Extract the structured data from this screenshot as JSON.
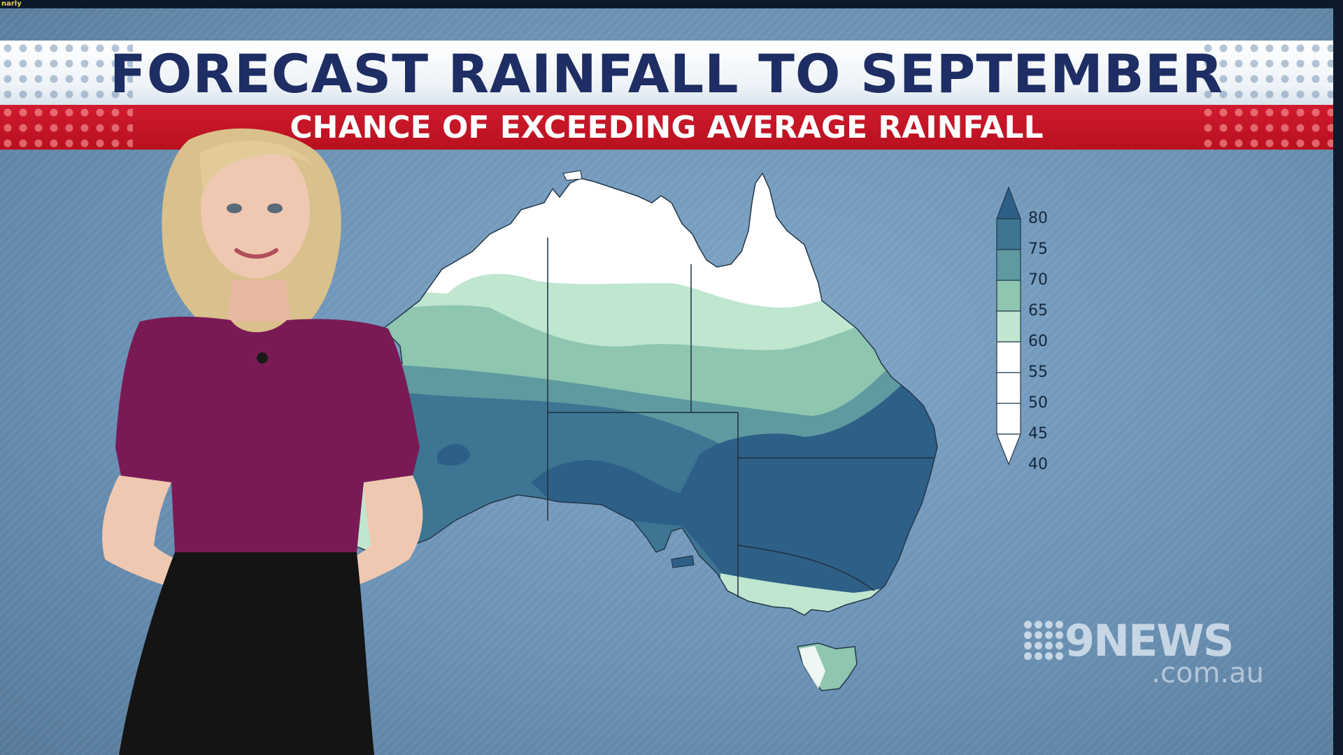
{
  "corner_tag": "narly",
  "title": "FORECAST RAINFALL TO SEPTEMBER",
  "subtitle": "CHANCE OF EXCEEDING AVERAGE RAINFALL",
  "legend": {
    "labels": [
      "80",
      "75",
      "70",
      "65",
      "60",
      "55",
      "50",
      "45",
      "40"
    ],
    "colors": [
      "#2e5f86",
      "#3d7593",
      "#5f9aa0",
      "#8ec6b0",
      "#bfe6cf",
      "#ffffff",
      "#ffffff",
      "#ffffff",
      "#ffffff"
    ]
  },
  "logo": {
    "brand": "9NEWS",
    "domain": ".com.au"
  },
  "colors": {
    "title_text": "#1e2d63",
    "subtitle_bar": "#c4152a",
    "presenter_dress": "#7a1a55"
  }
}
